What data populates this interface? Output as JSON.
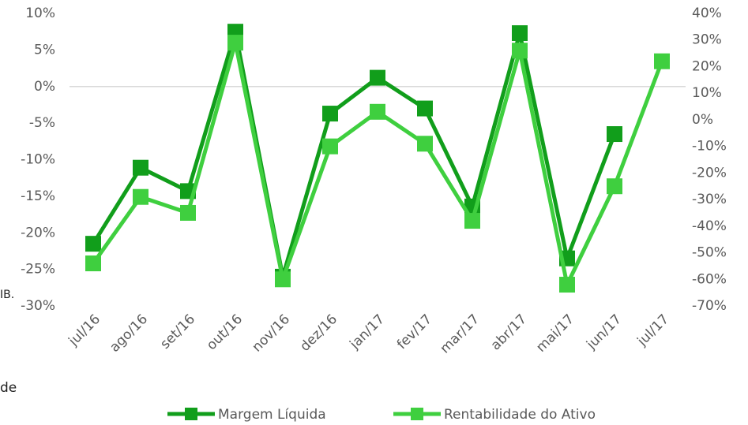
{
  "chart_data": {
    "type": "line",
    "categories": [
      "jul/16",
      "ago/16",
      "set/16",
      "out/16",
      "nov/16",
      "dez/16",
      "jan/17",
      "fev/17",
      "mar/17",
      "abr/17",
      "mai/17",
      "jun/17",
      "jul/17"
    ],
    "series": [
      {
        "name": "Margem Líquida",
        "color": "#119e1b",
        "values": [
          -21.5,
          -11.1,
          -14.3,
          7.5,
          -26,
          -3.7,
          1.2,
          -3,
          -16.4,
          7.3,
          -23.5,
          -6.5,
          null
        ]
      },
      {
        "name": "Rentabilidade do Ativo",
        "color": "#3fcf3f",
        "axis": "y2",
        "values": [
          -54,
          -29,
          -35,
          29,
          -60,
          -10,
          3,
          -9,
          -38,
          26,
          -62,
          -25,
          22
        ]
      }
    ],
    "ylim": [
      -30,
      10
    ],
    "yticks": [
      {
        "value": -30,
        "label": "-30%"
      },
      {
        "value": -25,
        "label": "-25%"
      },
      {
        "value": -20,
        "label": "-20%"
      },
      {
        "value": -15,
        "label": "-15%"
      },
      {
        "value": -10,
        "label": "-10%"
      },
      {
        "value": -5,
        "label": "-5%"
      },
      {
        "value": 0,
        "label": "0%"
      },
      {
        "value": 5,
        "label": "5%"
      },
      {
        "value": 10,
        "label": "10%"
      }
    ],
    "y2lim": [
      -70,
      40
    ],
    "y2ticks": [
      {
        "value": -70,
        "label": "-70%"
      },
      {
        "value": -60,
        "label": "-60%"
      },
      {
        "value": -50,
        "label": "-50%"
      },
      {
        "value": -40,
        "label": "-40%"
      },
      {
        "value": -30,
        "label": "-30%"
      },
      {
        "value": -20,
        "label": "-20%"
      },
      {
        "value": -10,
        "label": "-10%"
      },
      {
        "value": 0,
        "label": "0%"
      },
      {
        "value": 10,
        "label": "10%"
      },
      {
        "value": 20,
        "label": "20%"
      },
      {
        "value": 30,
        "label": "30%"
      },
      {
        "value": 40,
        "label": "40%"
      }
    ],
    "legend": "bottom",
    "fragments": [
      "IB.",
      "de"
    ]
  }
}
